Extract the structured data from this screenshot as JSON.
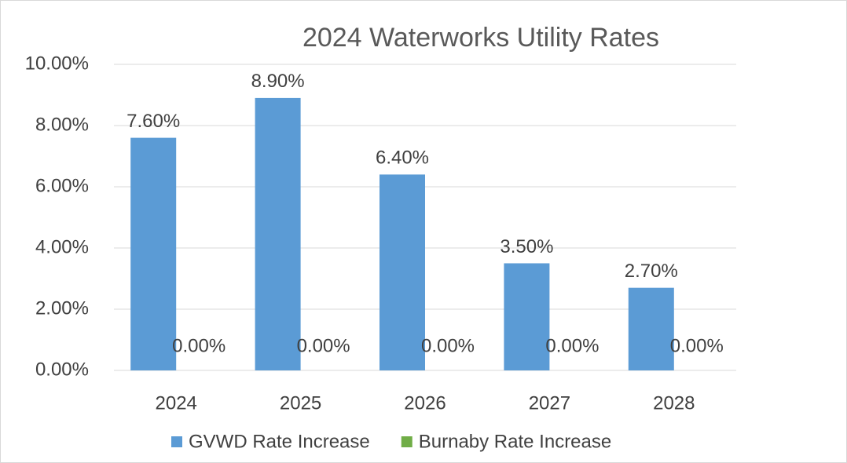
{
  "chart_data": {
    "type": "bar",
    "title": "2024 Waterworks Utility Rates",
    "categories": [
      "2024",
      "2025",
      "2026",
      "2027",
      "2028"
    ],
    "series": [
      {
        "name": "GVWD Rate Increase",
        "color": "#5b9bd5",
        "values": [
          7.6,
          8.9,
          6.4,
          3.5,
          2.7
        ],
        "value_labels": [
          "7.60%",
          "8.90%",
          "6.40%",
          "3.50%",
          "2.70%"
        ]
      },
      {
        "name": "Burnaby Rate Increase",
        "color": "#70ad47",
        "values": [
          0,
          0,
          0,
          0,
          0
        ],
        "value_labels": [
          "0.00%",
          "0.00%",
          "0.00%",
          "0.00%",
          "0.00%"
        ]
      }
    ],
    "ylim": [
      0,
      10
    ],
    "yticks": [
      {
        "value": 0,
        "label": "0.00%"
      },
      {
        "value": 2,
        "label": "2.00%"
      },
      {
        "value": 4,
        "label": "4.00%"
      },
      {
        "value": 6,
        "label": "6.00%"
      },
      {
        "value": 8,
        "label": "8.00%"
      },
      {
        "value": 10,
        "label": "10.00%"
      }
    ],
    "grid": true,
    "legend": "bottom"
  }
}
